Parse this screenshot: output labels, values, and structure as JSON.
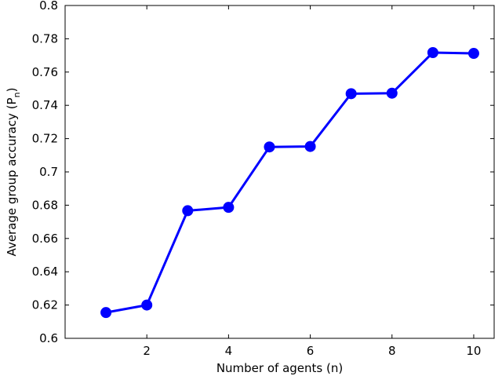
{
  "chart_data": {
    "type": "line",
    "xlabel": "Number of agents (n)",
    "ylabel": "Average group accuracy (P",
    "ylabel_sub": "n",
    "ylabel_close": ")",
    "xlim": [
      0,
      10.5
    ],
    "ylim": [
      0.6,
      0.8
    ],
    "xticks": [
      2,
      4,
      6,
      8,
      10
    ],
    "xtick_labels": [
      "2",
      "4",
      "6",
      "8",
      "10"
    ],
    "yticks": [
      0.6,
      0.62,
      0.64,
      0.66,
      0.68,
      0.7,
      0.72,
      0.74,
      0.76,
      0.78,
      0.8
    ],
    "ytick_labels": [
      "0.6",
      "0.62",
      "0.64",
      "0.66",
      "0.68",
      "0.7",
      "0.72",
      "0.74",
      "0.76",
      "0.78",
      "0.8"
    ],
    "grid": false,
    "series": [
      {
        "color": "#0000ff",
        "marker": "circle",
        "x": [
          1,
          2,
          3,
          4,
          5,
          6,
          7,
          8,
          9,
          10
        ],
        "y": [
          0.6155,
          0.62,
          0.6767,
          0.6787,
          0.715,
          0.7153,
          0.747,
          0.7473,
          0.7717,
          0.7712
        ]
      }
    ]
  }
}
